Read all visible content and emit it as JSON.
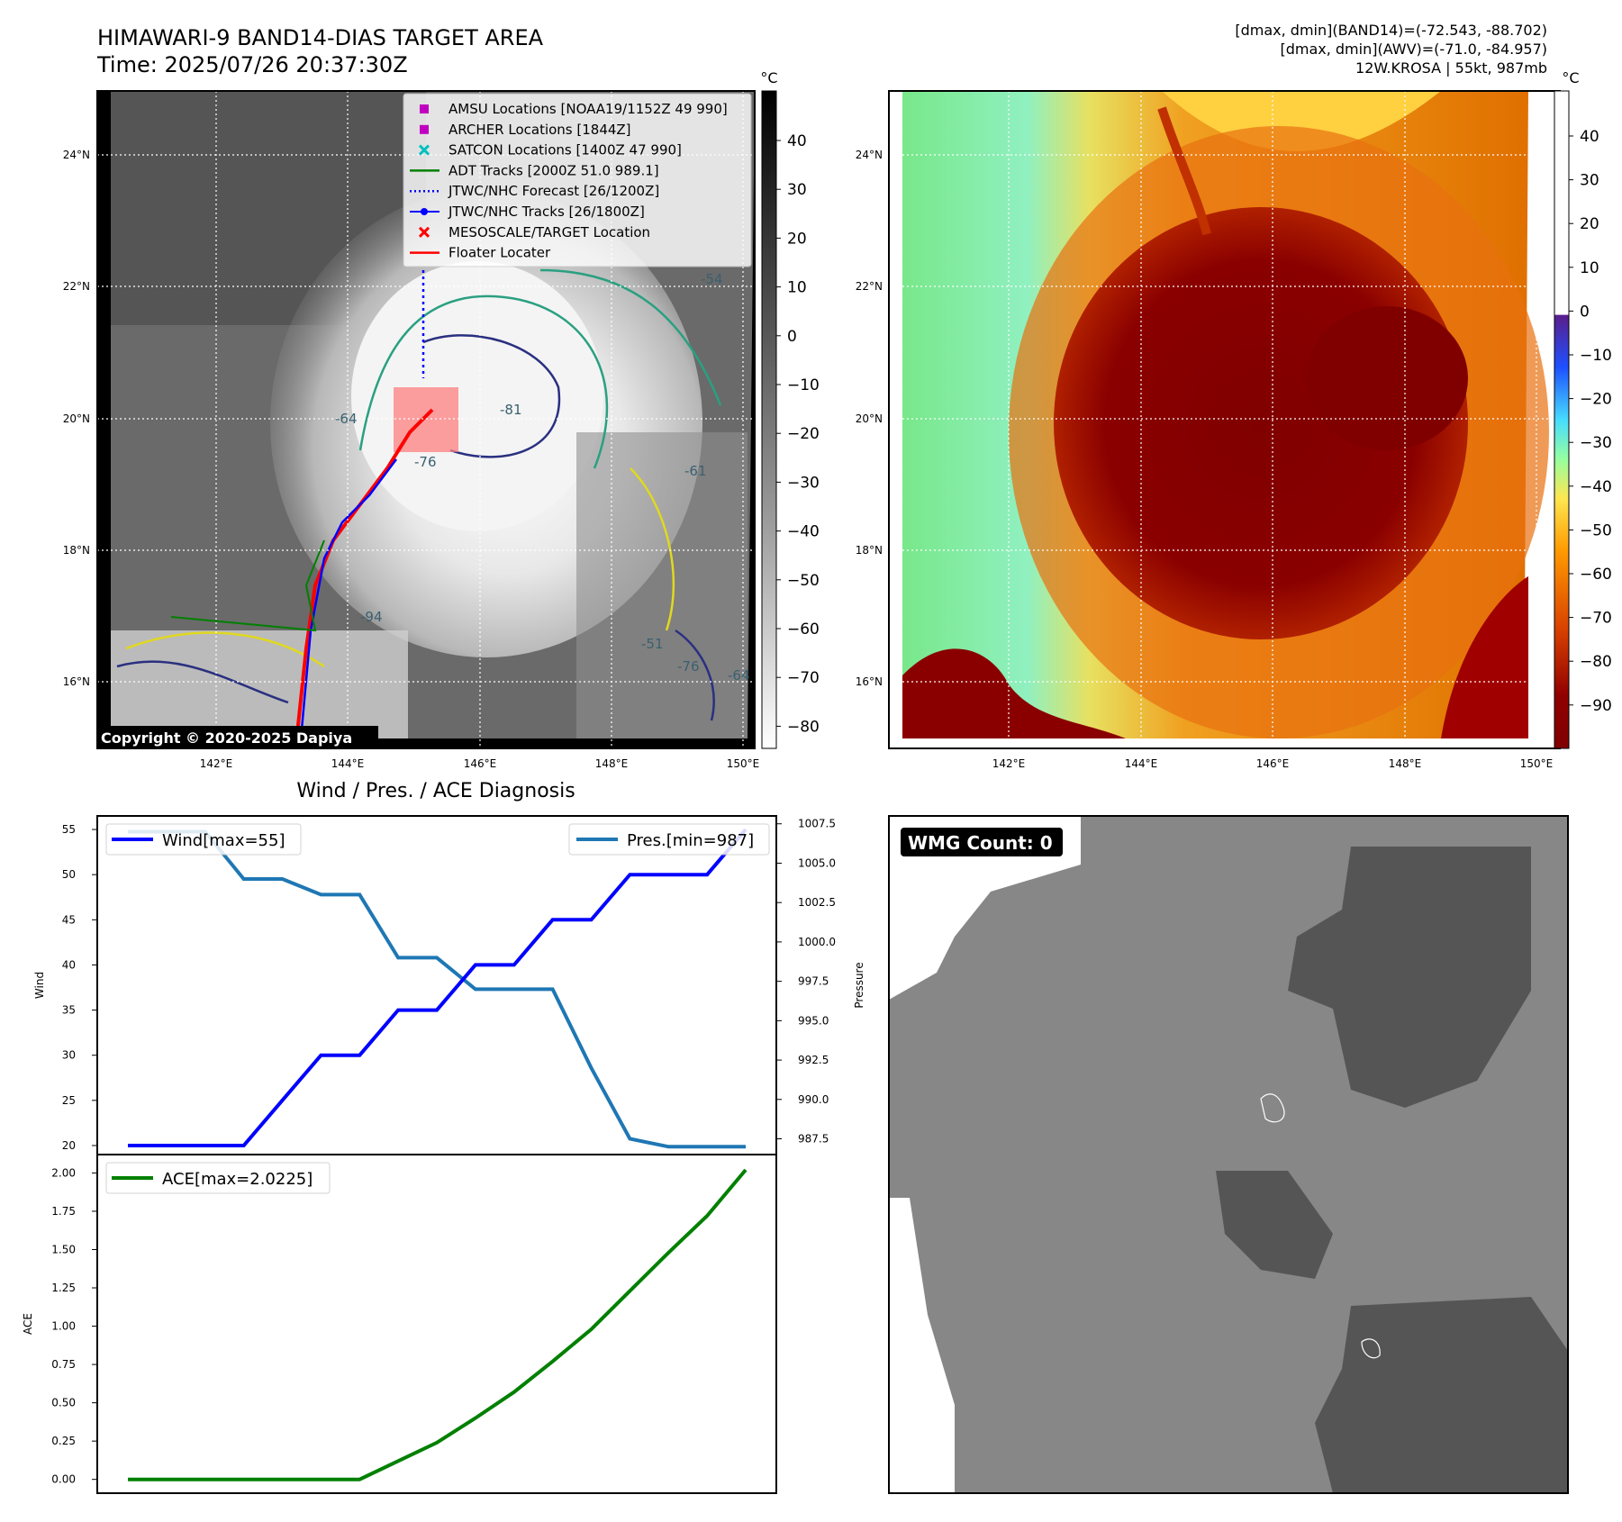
{
  "header": {
    "title_line1": "HIMAWARI-9 BAND14-DIAS TARGET AREA",
    "title_line2": "Time: 2025/07/26 20:37:30Z",
    "info_line1": "[dmax, dmin](BAND14)=(-72.543, -88.702)",
    "info_line2": "[dmax, dmin](AWV)=(-71.0, -84.957)",
    "info_line3": "12W.KROSA | 55kt, 987mb"
  },
  "ir_map": {
    "lat_labels": [
      "24°N",
      "22°N",
      "20°N",
      "18°N",
      "16°N"
    ],
    "lon_labels": [
      "142°E",
      "144°E",
      "146°E",
      "148°E",
      "150°E"
    ],
    "copyright": "Copyright © 2020-2025 Dapiya",
    "contour_labels": [
      "-81",
      "-76",
      "-64",
      "-54",
      "-76",
      "-64",
      "-94",
      "-61",
      "-51"
    ],
    "colorbar": {
      "unit": "°C",
      "ticks": [
        "40",
        "30",
        "20",
        "10",
        "0",
        "−10",
        "−20",
        "−30",
        "−40",
        "−50",
        "−60",
        "−70",
        "−80"
      ]
    },
    "legend": [
      {
        "label": "AMSU Locations [NOAA19/1152Z 49 990]",
        "marker": "square",
        "color": "#c000c0"
      },
      {
        "label": "ARCHER Locations [1844Z]",
        "marker": "square",
        "color": "#c000c0"
      },
      {
        "label": "SATCON Locations [1400Z 47 990]",
        "marker": "x",
        "color": "#00c0c0"
      },
      {
        "label": "ADT Tracks [2000Z 51.0 989.1]",
        "marker": "line",
        "color": "#008000"
      },
      {
        "label": "JTWC/NHC Forecast [26/1200Z]",
        "marker": "dotted",
        "color": "#0000ff"
      },
      {
        "label": "JTWC/NHC Tracks [26/1800Z]",
        "marker": "line-dot",
        "color": "#0000ff"
      },
      {
        "label": "MESOSCALE/TARGET Location",
        "marker": "x",
        "color": "#ff0000"
      },
      {
        "label": "Floater Locater",
        "marker": "line",
        "color": "#ff0000"
      }
    ]
  },
  "awv_map": {
    "lat_labels": [
      "24°N",
      "22°N",
      "20°N",
      "18°N",
      "16°N"
    ],
    "lon_labels": [
      "142°E",
      "144°E",
      "146°E",
      "148°E",
      "150°E"
    ],
    "colorbar": {
      "unit": "°C",
      "ticks": [
        "40",
        "30",
        "20",
        "10",
        "0",
        "−10",
        "−20",
        "−30",
        "−40",
        "−50",
        "−60",
        "−70",
        "−80",
        "−90"
      ]
    }
  },
  "wmg": {
    "label": "WMG Count: 0"
  },
  "colors": {
    "wind": "#0000ff",
    "pressure": "#1f77b4",
    "ace": "#008000"
  },
  "chart_data": [
    {
      "type": "line",
      "title": "Wind / Pres. / ACE Diagnosis",
      "ylabel": "Wind",
      "ylim": [
        19,
        56.5
      ],
      "y_ticks": [
        20,
        25,
        30,
        35,
        40,
        45,
        50,
        55
      ],
      "x": [
        0,
        1,
        2,
        3,
        4,
        5,
        6,
        7,
        8,
        9,
        10,
        11,
        12,
        13,
        14,
        15,
        16
      ],
      "series": [
        {
          "name": "Wind[max=55]",
          "values": [
            20,
            20,
            20,
            20,
            25,
            30,
            30,
            35,
            35,
            40,
            40,
            45,
            45,
            50,
            50,
            50,
            55
          ]
        }
      ]
    },
    {
      "type": "line",
      "ylabel": "Pressure",
      "ylim": [
        986.5,
        1008
      ],
      "y_ticks": [
        "1007.5",
        "1005.0",
        "1002.5",
        "1000.0",
        "997.5",
        "995.0",
        "992.5",
        "990.0",
        "987.5"
      ],
      "x": [
        0,
        1,
        2,
        3,
        4,
        5,
        6,
        7,
        8,
        9,
        10,
        11,
        12,
        13,
        14,
        15,
        16
      ],
      "series": [
        {
          "name": "Pres.[min=987]",
          "values": [
            1007,
            1007,
            1007,
            1004,
            1004,
            1003,
            1003,
            999,
            999,
            997,
            997,
            997,
            992,
            987.5,
            987,
            987,
            987
          ]
        }
      ]
    },
    {
      "type": "line",
      "ylabel": "ACE",
      "ylim": [
        -0.09,
        2.12
      ],
      "y_ticks": [
        "0.00",
        "0.25",
        "0.50",
        "0.75",
        "1.00",
        "1.25",
        "1.50",
        "1.75",
        "2.00"
      ],
      "x": [
        0,
        1,
        2,
        3,
        4,
        5,
        6,
        7,
        8,
        9,
        10,
        11,
        12,
        13,
        14,
        15,
        16
      ],
      "series": [
        {
          "name": "ACE[max=2.0225]",
          "values": [
            0,
            0,
            0,
            0,
            0,
            0,
            0,
            0.12,
            0.24,
            0.4,
            0.57,
            0.77,
            0.98,
            1.23,
            1.48,
            1.72,
            2.02
          ]
        }
      ]
    }
  ]
}
